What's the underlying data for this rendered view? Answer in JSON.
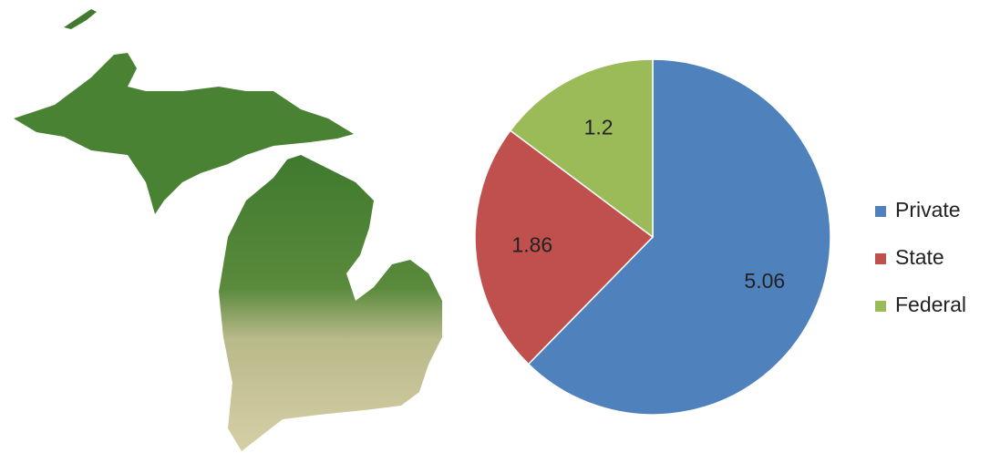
{
  "chart_data": {
    "type": "pie",
    "categories": [
      "Private",
      "State",
      "Federal"
    ],
    "values": [
      5.06,
      1.86,
      1.2
    ],
    "colors": [
      "#4f81bd",
      "#c0504d",
      "#9bbb59"
    ],
    "legend": "right"
  }
}
